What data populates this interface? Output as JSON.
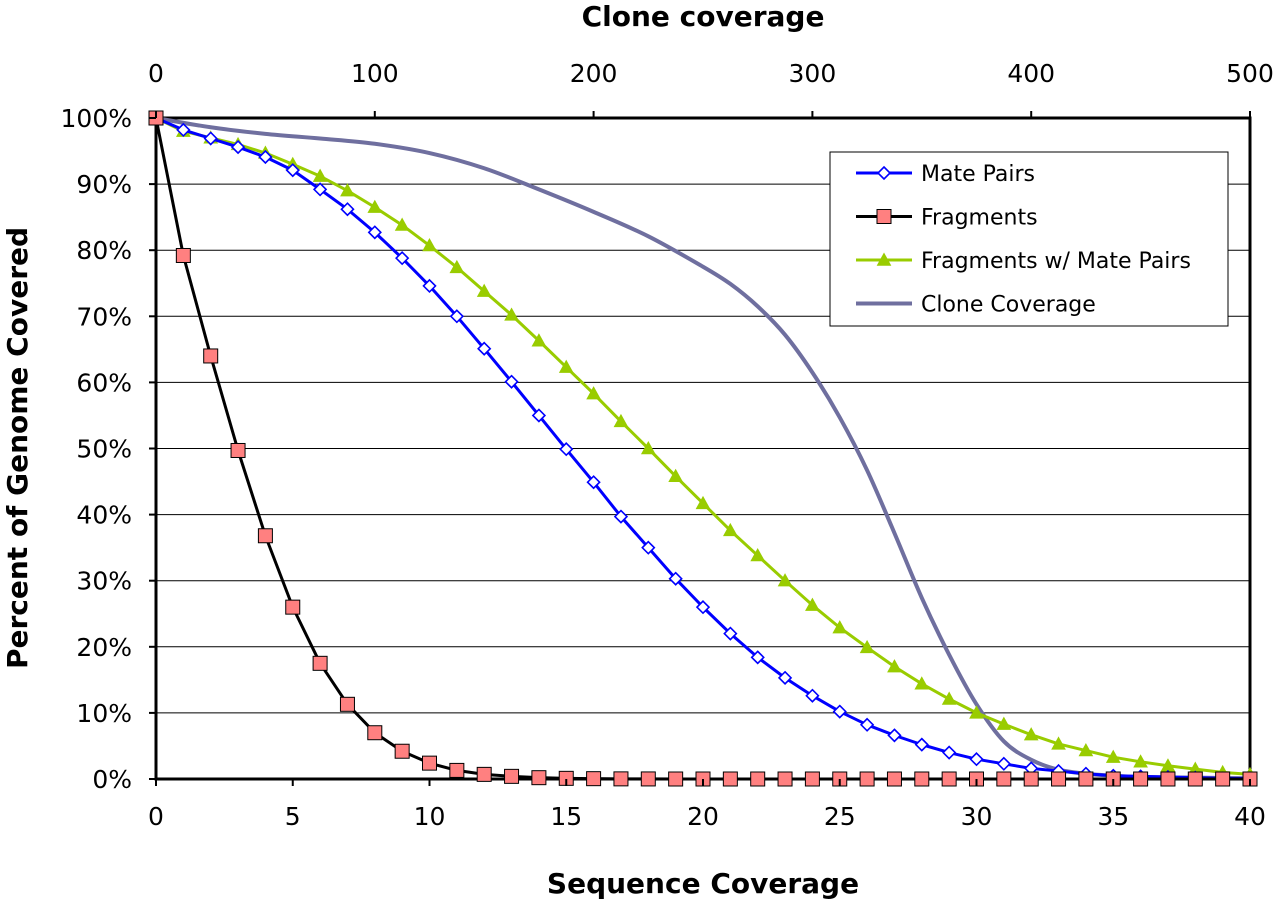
{
  "chart_data": {
    "type": "line",
    "xlabel": "Sequence Coverage",
    "x2label": "Clone coverage",
    "ylabel": "Percent of Genome Covered",
    "xlim": [
      0,
      40
    ],
    "x2lim": [
      0,
      500
    ],
    "ylim": [
      0,
      100
    ],
    "xticks": [
      "0",
      "5",
      "10",
      "15",
      "20",
      "25",
      "30",
      "35",
      "40"
    ],
    "x2ticks": [
      "0",
      "100",
      "200",
      "300",
      "400",
      "500"
    ],
    "yticks": [
      "0%",
      "10%",
      "20%",
      "30%",
      "40%",
      "50%",
      "60%",
      "70%",
      "80%",
      "90%",
      "100%"
    ],
    "grid": "horizontal",
    "legend_position": "top-right",
    "series": [
      {
        "name": "Mate Pairs",
        "color": "#0000ff",
        "marker": "diamond-open",
        "axis": "bottom",
        "x": [
          0,
          1,
          2,
          3,
          4,
          5,
          6,
          7,
          8,
          9,
          10,
          11,
          12,
          13,
          14,
          15,
          16,
          17,
          18,
          19,
          20,
          21,
          22,
          23,
          24,
          25,
          26,
          27,
          28,
          29,
          30,
          31,
          32,
          33,
          34,
          35,
          36,
          37,
          38,
          39,
          40
        ],
        "y": [
          100,
          98.2,
          96.9,
          95.6,
          94.1,
          92.1,
          89.2,
          86.2,
          82.7,
          78.8,
          74.6,
          70.0,
          65.1,
          60.1,
          55.0,
          49.9,
          44.9,
          39.7,
          35.0,
          30.3,
          26.0,
          22.0,
          18.4,
          15.3,
          12.6,
          10.2,
          8.2,
          6.6,
          5.2,
          4.0,
          3.0,
          2.3,
          1.6,
          1.2,
          0.8,
          0.5,
          0.4,
          0.3,
          0.2,
          0.1,
          0.1
        ]
      },
      {
        "name": "Fragments",
        "color": "#000000",
        "markerFill": "#ff8080",
        "marker": "square",
        "axis": "bottom",
        "x": [
          0,
          1,
          2,
          3,
          4,
          5,
          6,
          7,
          8,
          9,
          10,
          11,
          12,
          13,
          14,
          15,
          16,
          17,
          18,
          19,
          20,
          21,
          22,
          23,
          24,
          25,
          26,
          27,
          28,
          29,
          30,
          31,
          32,
          33,
          34,
          35,
          36,
          37,
          38,
          39,
          40
        ],
        "y": [
          100,
          79.2,
          64.0,
          49.7,
          36.8,
          26.0,
          17.5,
          11.3,
          7.0,
          4.2,
          2.4,
          1.3,
          0.7,
          0.4,
          0.2,
          0.1,
          0.05,
          0.02,
          0.01,
          0,
          0,
          0,
          0,
          0,
          0,
          0,
          0,
          0,
          0,
          0,
          0,
          0,
          0,
          0,
          0,
          0,
          0,
          0,
          0,
          0,
          0
        ]
      },
      {
        "name": "Fragments w/ Mate Pairs",
        "color": "#99cc00",
        "marker": "triangle",
        "axis": "bottom",
        "x": [
          0,
          1,
          2,
          3,
          4,
          5,
          6,
          7,
          8,
          9,
          10,
          11,
          12,
          13,
          14,
          15,
          16,
          17,
          18,
          19,
          20,
          21,
          22,
          23,
          24,
          25,
          26,
          27,
          28,
          29,
          30,
          31,
          32,
          33,
          34,
          35,
          36,
          37,
          38,
          39,
          40
        ],
        "y": [
          100,
          98.0,
          97.0,
          96.0,
          94.7,
          93.0,
          91.2,
          89.0,
          86.5,
          83.8,
          80.7,
          77.4,
          73.8,
          70.2,
          66.3,
          62.3,
          58.3,
          54.1,
          50.0,
          45.8,
          41.7,
          37.6,
          33.8,
          30.0,
          26.3,
          22.9,
          19.9,
          17.0,
          14.4,
          12.1,
          10.0,
          8.3,
          6.7,
          5.3,
          4.3,
          3.3,
          2.6,
          2.0,
          1.5,
          1.0,
          0.7
        ]
      },
      {
        "name": "Clone Coverage",
        "color": "#6f6f9f",
        "marker": "none",
        "axis": "top",
        "x": [
          0,
          25,
          50,
          75,
          100,
          125,
          150,
          175,
          200,
          225,
          250,
          262.5,
          275,
          287.5,
          300,
          312.5,
          325,
          337.5,
          350,
          362.5,
          375,
          387.5,
          400,
          412.5,
          425,
          437.5,
          450,
          475,
          500
        ],
        "y": [
          100,
          98.6,
          97.6,
          96.9,
          96.1,
          94.7,
          92.4,
          89.2,
          85.8,
          82.1,
          77.5,
          74.9,
          71.5,
          67.2,
          61.5,
          54.7,
          46.7,
          37.2,
          27.4,
          18.8,
          11.3,
          5.7,
          2.9,
          1.4,
          0.8,
          0.5,
          0.3,
          0.2,
          0.1
        ]
      }
    ]
  }
}
